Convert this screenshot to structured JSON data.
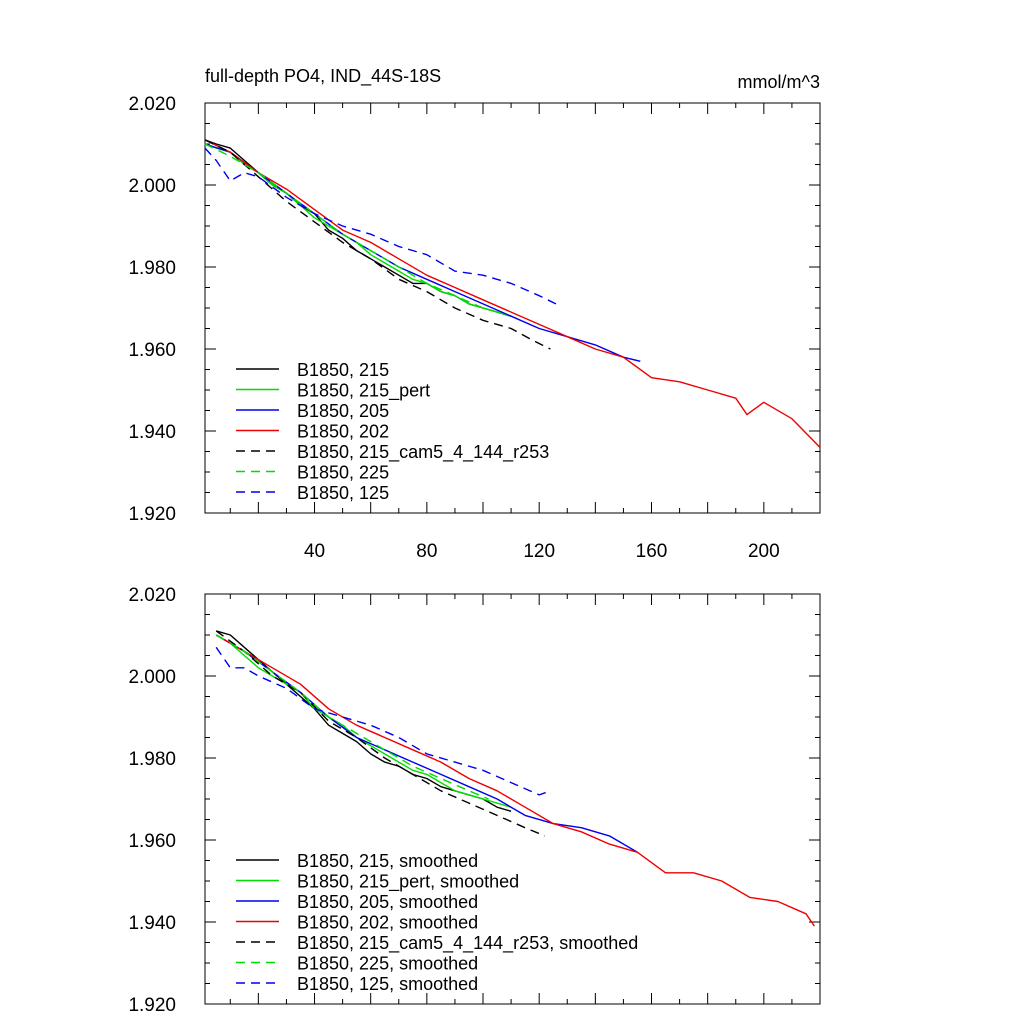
{
  "chart_data": [
    {
      "type": "line",
      "title": "full-depth PO4, IND_44S-18S",
      "units": "mmol/m^3",
      "xlim": [
        1,
        220
      ],
      "ylim": [
        1.92,
        2.02
      ],
      "xticks": [
        40,
        80,
        120,
        160,
        200
      ],
      "yticks": [
        "1.920",
        "1.940",
        "1.960",
        "1.980",
        "2.000",
        "2.020"
      ],
      "grid": false,
      "legend_position": "bottom-left",
      "series": [
        {
          "name": "B1850, 215",
          "color": "#000000",
          "dash": "solid",
          "x": [
            1,
            5,
            10,
            15,
            20,
            25,
            30,
            35,
            40,
            45,
            50,
            55,
            60,
            65,
            70,
            75,
            80,
            85,
            90,
            95,
            100,
            105,
            110
          ],
          "y": [
            2.011,
            2.01,
            2.009,
            2.006,
            2.003,
            2.0,
            1.998,
            1.995,
            1.993,
            1.989,
            1.987,
            1.984,
            1.982,
            1.98,
            1.978,
            1.976,
            1.976,
            1.974,
            1.973,
            1.971,
            1.97,
            1.969,
            1.968
          ]
        },
        {
          "name": "B1850, 215_pert",
          "color": "#00dd00",
          "dash": "solid",
          "x": [
            1,
            5,
            10,
            15,
            20,
            25,
            30,
            35,
            40,
            45,
            50,
            55,
            60,
            65,
            70,
            75,
            80,
            85,
            90,
            95,
            100,
            105,
            110
          ],
          "y": [
            2.01,
            2.009,
            2.008,
            2.005,
            2.003,
            2.0,
            1.998,
            1.995,
            1.992,
            1.99,
            1.988,
            1.986,
            1.983,
            1.981,
            1.979,
            1.977,
            1.976,
            1.974,
            1.973,
            1.971,
            1.97,
            1.969,
            1.968
          ]
        },
        {
          "name": "B1850, 205",
          "color": "#0000ee",
          "dash": "solid",
          "x": [
            1,
            10,
            20,
            30,
            40,
            50,
            60,
            70,
            80,
            90,
            100,
            110,
            120,
            130,
            140,
            150,
            156
          ],
          "y": [
            2.01,
            2.008,
            2.003,
            1.998,
            1.993,
            1.988,
            1.984,
            1.98,
            1.977,
            1.974,
            1.971,
            1.968,
            1.965,
            1.963,
            1.961,
            1.958,
            1.957
          ]
        },
        {
          "name": "B1850, 202",
          "color": "#ee0000",
          "dash": "solid",
          "x": [
            1,
            10,
            20,
            30,
            40,
            50,
            60,
            70,
            80,
            90,
            100,
            110,
            120,
            130,
            140,
            150,
            160,
            170,
            180,
            190,
            194,
            200,
            210,
            220
          ],
          "y": [
            2.011,
            2.008,
            2.003,
            1.999,
            1.994,
            1.989,
            1.986,
            1.982,
            1.978,
            1.975,
            1.972,
            1.969,
            1.966,
            1.963,
            1.96,
            1.958,
            1.953,
            1.952,
            1.95,
            1.948,
            1.944,
            1.947,
            1.943,
            1.936
          ]
        },
        {
          "name": "B1850, 215_cam5_4_144_r253",
          "color": "#000000",
          "dash": "dashed",
          "x": [
            1,
            10,
            20,
            30,
            40,
            50,
            60,
            70,
            80,
            90,
            100,
            110,
            118,
            124
          ],
          "y": [
            2.011,
            2.008,
            2.002,
            1.996,
            1.991,
            1.986,
            1.982,
            1.977,
            1.974,
            1.97,
            1.967,
            1.965,
            1.962,
            1.96
          ]
        },
        {
          "name": "B1850, 225",
          "color": "#00dd00",
          "dash": "dashed",
          "x": [
            1,
            10,
            20,
            30,
            40,
            50,
            60,
            70,
            80,
            90,
            100,
            105
          ],
          "y": [
            2.01,
            2.007,
            2.003,
            1.998,
            1.993,
            1.988,
            1.984,
            1.98,
            1.976,
            1.973,
            1.97,
            1.969
          ]
        },
        {
          "name": "B1850, 125",
          "color": "#0000ee",
          "dash": "dashed",
          "x": [
            1,
            5,
            10,
            15,
            20,
            30,
            40,
            50,
            60,
            70,
            80,
            90,
            100,
            110,
            120,
            126
          ],
          "y": [
            2.009,
            2.006,
            2.001,
            2.003,
            2.002,
            1.997,
            1.993,
            1.99,
            1.988,
            1.985,
            1.983,
            1.979,
            1.978,
            1.976,
            1.973,
            1.971
          ]
        }
      ]
    },
    {
      "type": "line",
      "xlim": [
        1,
        220
      ],
      "ylim": [
        1.92,
        2.02
      ],
      "yticks": [
        "1.920",
        "1.940",
        "1.960",
        "1.980",
        "2.000",
        "2.020"
      ],
      "grid": false,
      "legend_position": "bottom-left",
      "series": [
        {
          "name": "B1850, 215, smoothed",
          "color": "#000000",
          "dash": "solid",
          "x": [
            5,
            10,
            15,
            20,
            25,
            30,
            35,
            40,
            45,
            50,
            55,
            60,
            65,
            70,
            75,
            80,
            85,
            90,
            95,
            100,
            105,
            110
          ],
          "y": [
            2.011,
            2.01,
            2.007,
            2.004,
            2.001,
            1.998,
            1.995,
            1.992,
            1.988,
            1.986,
            1.984,
            1.981,
            1.979,
            1.978,
            1.976,
            1.975,
            1.973,
            1.972,
            1.971,
            1.97,
            1.968,
            1.967
          ]
        },
        {
          "name": "B1850, 215_pert, smoothed",
          "color": "#00dd00",
          "dash": "solid",
          "x": [
            5,
            10,
            15,
            20,
            25,
            30,
            35,
            40,
            45,
            50,
            55,
            60,
            65,
            70,
            75,
            80,
            85,
            90,
            95,
            100,
            105,
            110
          ],
          "y": [
            2.01,
            2.008,
            2.005,
            2.002,
            2.0,
            1.998,
            1.996,
            1.992,
            1.99,
            1.988,
            1.985,
            1.983,
            1.981,
            1.979,
            1.977,
            1.976,
            1.974,
            1.972,
            1.971,
            1.97,
            1.969,
            1.968
          ]
        },
        {
          "name": "B1850, 205, smoothed",
          "color": "#0000ee",
          "dash": "solid",
          "x": [
            5,
            15,
            25,
            35,
            45,
            55,
            65,
            75,
            85,
            95,
            105,
            115,
            125,
            135,
            145,
            155
          ],
          "y": [
            2.01,
            2.006,
            2.001,
            1.996,
            1.99,
            1.985,
            1.982,
            1.979,
            1.976,
            1.973,
            1.97,
            1.966,
            1.964,
            1.963,
            1.961,
            1.957
          ]
        },
        {
          "name": "B1850, 202, smoothed",
          "color": "#ee0000",
          "dash": "solid",
          "x": [
            5,
            15,
            25,
            35,
            45,
            55,
            65,
            75,
            85,
            95,
            105,
            115,
            125,
            135,
            145,
            155,
            165,
            175,
            185,
            195,
            205,
            215,
            218
          ],
          "y": [
            2.01,
            2.006,
            2.002,
            1.998,
            1.992,
            1.988,
            1.985,
            1.982,
            1.979,
            1.975,
            1.972,
            1.968,
            1.964,
            1.962,
            1.959,
            1.957,
            1.952,
            1.952,
            1.95,
            1.946,
            1.945,
            1.942,
            1.939
          ]
        },
        {
          "name": "B1850, 215_cam5_4_144_r253, smoothed",
          "color": "#000000",
          "dash": "dashed",
          "x": [
            5,
            15,
            25,
            35,
            45,
            55,
            65,
            75,
            85,
            95,
            105,
            115,
            122
          ],
          "y": [
            2.011,
            2.006,
            2.0,
            1.996,
            1.989,
            1.985,
            1.98,
            1.976,
            1.972,
            1.969,
            1.966,
            1.963,
            1.961
          ]
        },
        {
          "name": "B1850, 225, smoothed",
          "color": "#00dd00",
          "dash": "dashed",
          "x": [
            5,
            15,
            25,
            35,
            45,
            55,
            65,
            75,
            85,
            95,
            102
          ],
          "y": [
            2.01,
            2.006,
            2.001,
            1.996,
            1.99,
            1.986,
            1.982,
            1.978,
            1.975,
            1.972,
            1.97
          ]
        },
        {
          "name": "B1850, 125, smoothed",
          "color": "#0000ee",
          "dash": "dashed",
          "x": [
            5,
            10,
            15,
            20,
            30,
            40,
            50,
            60,
            70,
            80,
            90,
            100,
            110,
            120,
            124
          ],
          "y": [
            2.007,
            2.002,
            2.002,
            2.0,
            1.997,
            1.992,
            1.99,
            1.988,
            1.985,
            1.981,
            1.979,
            1.977,
            1.974,
            1.971,
            1.972
          ]
        }
      ]
    }
  ]
}
